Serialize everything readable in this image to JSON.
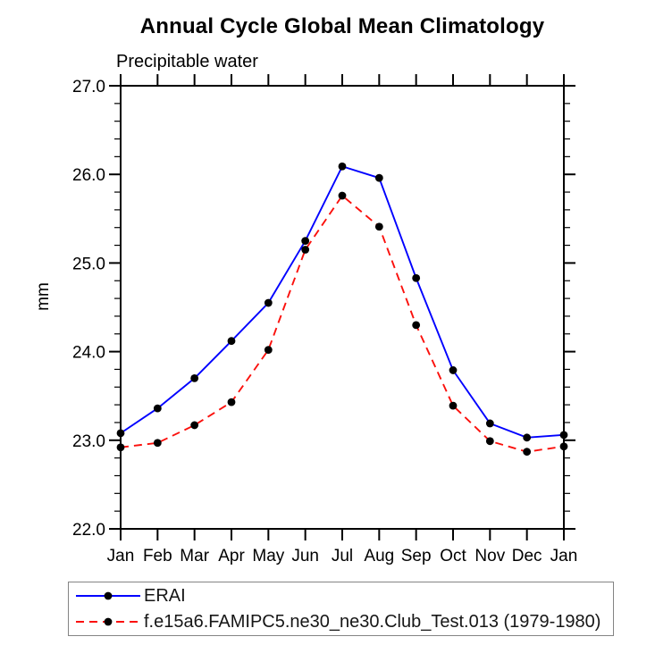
{
  "colors": {
    "axis": "#000000",
    "text": "#000000",
    "marker": "#000000",
    "legend_border": "#848484",
    "background": "#ffffff"
  },
  "chart_data": {
    "type": "line",
    "title": "Annual Cycle Global Mean Climatology",
    "subtitle": "Precipitable water",
    "ylabel": "mm",
    "xlabel": "",
    "categories": [
      "Jan",
      "Feb",
      "Mar",
      "Apr",
      "May",
      "Jun",
      "Jul",
      "Aug",
      "Sep",
      "Oct",
      "Nov",
      "Dec",
      "Jan"
    ],
    "ylim": [
      22.0,
      27.0
    ],
    "ytick_interval": 1.0,
    "yminor_interval": 0.2,
    "ytick_labels": [
      "22.0",
      "23.0",
      "24.0",
      "25.0",
      "26.0",
      "27.0"
    ],
    "grid": false,
    "legend_position": "bottom",
    "series": [
      {
        "name": "ERAI",
        "color": "#0000ff",
        "style": "solid",
        "marker": "circle",
        "marker_color": "#000000",
        "values": [
          23.08,
          23.36,
          23.7,
          24.12,
          24.55,
          25.25,
          26.09,
          25.96,
          24.83,
          23.79,
          23.19,
          23.03,
          23.06
        ]
      },
      {
        "name": "f.e15a6.FAMIPC5.ne30_ne30.Club_Test.013 (1979-1980)",
        "color": "#fb100c",
        "style": "dashed",
        "marker": "circle",
        "marker_color": "#000000",
        "values": [
          22.92,
          22.97,
          23.17,
          23.43,
          24.02,
          25.15,
          25.76,
          25.41,
          24.3,
          23.39,
          22.99,
          22.87,
          22.93
        ]
      }
    ]
  }
}
